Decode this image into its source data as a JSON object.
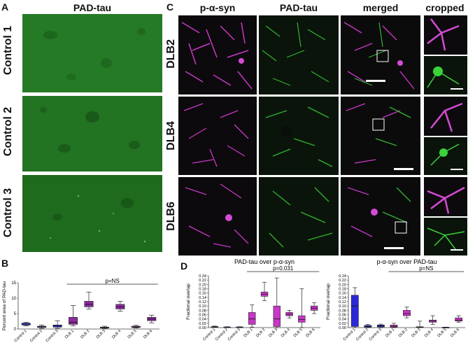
{
  "labels": {
    "A": "A",
    "B": "B",
    "C": "C",
    "D": "D"
  },
  "panelA": {
    "header": "PAD-tau",
    "rows": [
      "Control 1",
      "Control 2",
      "Control 3"
    ]
  },
  "panelC": {
    "headers": [
      "p-α-syn",
      "PAD-tau",
      "merged",
      "cropped"
    ],
    "rows": [
      "DLB2",
      "DLB4",
      "DLB6"
    ]
  },
  "colors": {
    "magenta": "#c837c8",
    "purple_box": "#8b2b9c",
    "blue_box": "#2a2ad6",
    "green_tile": "#1f7a1f",
    "dark_green": "#0d3d0d"
  },
  "chart_data": [
    {
      "id": "B",
      "type": "boxplot",
      "title": "",
      "ylabel": "Percent area of PAD-tau",
      "xlabel": "",
      "ylim": [
        0,
        15
      ],
      "yticks": [
        0,
        5,
        10,
        15
      ],
      "significance": "p=NS",
      "significance_span": [
        "DLB 1",
        "DLB 6"
      ],
      "categories": [
        "Control 1",
        "Control 2",
        "Control 3",
        "DLB 1",
        "DLB 2",
        "DLB 3",
        "DLB 4",
        "DLB 5",
        "DLB 6"
      ],
      "boxes": [
        {
          "min": 1.0,
          "q1": 1.3,
          "median": 1.6,
          "q3": 1.9,
          "max": 2.2,
          "color": "#2a2ad6"
        },
        {
          "min": 0.2,
          "q1": 0.5,
          "median": 0.7,
          "q3": 0.9,
          "max": 1.3,
          "color": "#2a2ad6"
        },
        {
          "min": 0.2,
          "q1": 0.6,
          "median": 1.0,
          "q3": 1.3,
          "max": 2.7,
          "color": "#2a2ad6"
        },
        {
          "min": 1.0,
          "q1": 1.5,
          "median": 2.2,
          "q3": 3.8,
          "max": 7.6,
          "color": "#8b2b9c"
        },
        {
          "min": 6.5,
          "q1": 7.2,
          "median": 8.0,
          "q3": 9.0,
          "max": 12.0,
          "color": "#8b2b9c"
        },
        {
          "min": 0.1,
          "q1": 0.3,
          "median": 0.4,
          "q3": 0.6,
          "max": 0.9,
          "color": "#8b2b9c"
        },
        {
          "min": 5.8,
          "q1": 6.5,
          "median": 7.2,
          "q3": 8.0,
          "max": 9.0,
          "color": "#8b2b9c"
        },
        {
          "min": 0.3,
          "q1": 0.5,
          "median": 0.7,
          "q3": 0.9,
          "max": 1.2,
          "color": "#8b2b9c"
        },
        {
          "min": 2.0,
          "q1": 2.7,
          "median": 3.2,
          "q3": 3.8,
          "max": 4.5,
          "color": "#8b2b9c"
        }
      ]
    },
    {
      "id": "D1",
      "type": "boxplot",
      "title": "PAD-tau over p-α-syn",
      "ylabel": "Fractional overlap",
      "xlabel": "",
      "ylim": [
        0,
        0.24
      ],
      "yticks": [
        0.0,
        0.02,
        0.04,
        0.06,
        0.08,
        0.1,
        0.12,
        0.14,
        0.16,
        0.18,
        0.2,
        0.22,
        0.24
      ],
      "significance": "p=0.031",
      "significance_span": [
        "DLB 1",
        "DLB 6"
      ],
      "categories": [
        "Control 1",
        "Control 2",
        "Control 3",
        "DLB 1",
        "DLB 2",
        "DLB 3",
        "DLB 4",
        "DLB 5",
        "DLB 6"
      ],
      "boxes": [
        {
          "min": 0.001,
          "q1": 0.002,
          "median": 0.003,
          "q3": 0.005,
          "max": 0.007,
          "color": "#2a2ad6"
        },
        {
          "min": 0.0,
          "q1": 0.001,
          "median": 0.002,
          "q3": 0.003,
          "max": 0.004,
          "color": "#2a2ad6"
        },
        {
          "min": 0.0,
          "q1": 0.001,
          "median": 0.002,
          "q3": 0.003,
          "max": 0.004,
          "color": "#2a2ad6"
        },
        {
          "min": 0.002,
          "q1": 0.015,
          "median": 0.04,
          "q3": 0.07,
          "max": 0.105,
          "color": "#c837c8"
        },
        {
          "min": 0.125,
          "q1": 0.145,
          "median": 0.155,
          "q3": 0.165,
          "max": 0.21,
          "color": "#c837c8"
        },
        {
          "min": 0.0,
          "q1": 0.005,
          "median": 0.04,
          "q3": 0.1,
          "max": 0.23,
          "color": "#c837c8"
        },
        {
          "min": 0.045,
          "q1": 0.055,
          "median": 0.062,
          "q3": 0.07,
          "max": 0.08,
          "color": "#c837c8"
        },
        {
          "min": 0.0,
          "q1": 0.025,
          "median": 0.038,
          "q3": 0.055,
          "max": 0.18,
          "color": "#c837c8"
        },
        {
          "min": 0.065,
          "q1": 0.08,
          "median": 0.09,
          "q3": 0.1,
          "max": 0.115,
          "color": "#c837c8"
        }
      ]
    },
    {
      "id": "D2",
      "type": "boxplot",
      "title": "p-α-syn over PAD-tau",
      "ylabel": "Fractional overlap",
      "xlabel": "",
      "ylim": [
        0,
        0.24
      ],
      "yticks": [
        0.0,
        0.02,
        0.04,
        0.06,
        0.08,
        0.1,
        0.12,
        0.14,
        0.16,
        0.18,
        0.2,
        0.22,
        0.24
      ],
      "significance": "p=NS",
      "significance_span": [
        "DLB 1",
        "DLB 6"
      ],
      "categories": [
        "Control 1",
        "Control 2",
        "Control 3",
        "DLB 1",
        "DLB 2",
        "DLB 3",
        "DLB 4",
        "DLB 5",
        "DLB 6"
      ],
      "boxes": [
        {
          "min": 0.0,
          "q1": 0.005,
          "median": 0.1,
          "q3": 0.15,
          "max": 0.185,
          "color": "#2a2ad6"
        },
        {
          "min": 0.0,
          "q1": 0.002,
          "median": 0.005,
          "q3": 0.01,
          "max": 0.015,
          "color": "#2a2ad6"
        },
        {
          "min": 0.0,
          "q1": 0.003,
          "median": 0.008,
          "q3": 0.012,
          "max": 0.016,
          "color": "#2a2ad6"
        },
        {
          "min": 0.0,
          "q1": 0.002,
          "median": 0.006,
          "q3": 0.012,
          "max": 0.02,
          "color": "#c837c8"
        },
        {
          "min": 0.045,
          "q1": 0.055,
          "median": 0.065,
          "q3": 0.08,
          "max": 0.095,
          "color": "#c837c8"
        },
        {
          "min": 0.0,
          "q1": 0.001,
          "median": 0.002,
          "q3": 0.004,
          "max": 0.03,
          "color": "#c837c8"
        },
        {
          "min": 0.015,
          "q1": 0.025,
          "median": 0.03,
          "q3": 0.035,
          "max": 0.055,
          "color": "#c837c8"
        },
        {
          "min": 0.0,
          "q1": 0.0,
          "median": 0.001,
          "q3": 0.001,
          "max": 0.002,
          "color": "#c837c8"
        },
        {
          "min": 0.025,
          "q1": 0.03,
          "median": 0.035,
          "q3": 0.045,
          "max": 0.055,
          "color": "#c837c8"
        }
      ]
    }
  ]
}
